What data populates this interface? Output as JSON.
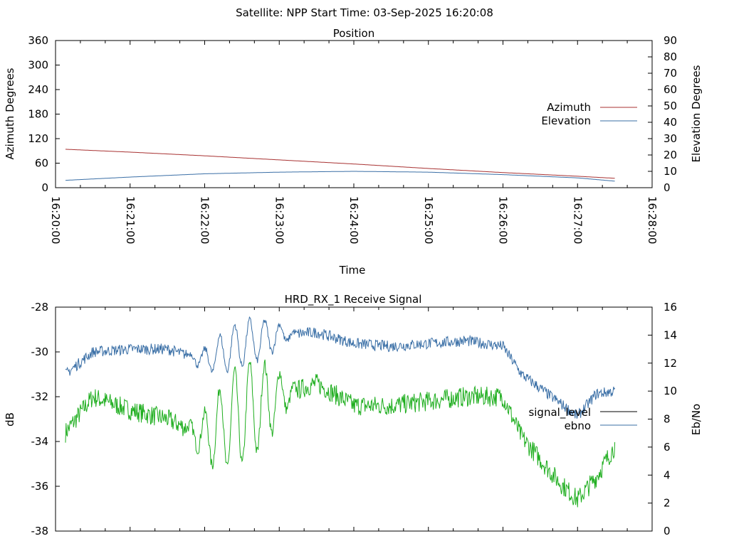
{
  "header": {
    "title": "Satellite: NPP    Start Time: 03-Sep-2025 16:20:08"
  },
  "colors": {
    "azimuth": "#a83232",
    "elevation": "#3a6fa6",
    "signal_level": "#000000",
    "signal_trace": "#1fae1f",
    "ebno": "#3a6fa6"
  },
  "chart_data": [
    {
      "id": "position",
      "type": "line",
      "title": "Position",
      "xlabel": "Time",
      "ylabel": "Azimuth Degrees",
      "y2label": "Elevation Degrees",
      "xlim": [
        "16:20:00",
        "16:28:00"
      ],
      "ylim": [
        0,
        360
      ],
      "y2lim": [
        0,
        90
      ],
      "xticks": [
        "16:20:00",
        "16:21:00",
        "16:22:00",
        "16:23:00",
        "16:24:00",
        "16:25:00",
        "16:26:00",
        "16:27:00",
        "16:28:00"
      ],
      "yticks": [
        "0",
        "60",
        "120",
        "180",
        "240",
        "300",
        "360"
      ],
      "y2ticks": [
        "0",
        "10",
        "20",
        "30",
        "40",
        "50",
        "60",
        "70",
        "80",
        "90"
      ],
      "legend": "right",
      "series": [
        {
          "name": "Azimuth",
          "axis": "y",
          "x": [
            "16:20:08",
            "16:21:00",
            "16:22:00",
            "16:23:00",
            "16:24:00",
            "16:25:00",
            "16:26:00",
            "16:27:00",
            "16:27:30"
          ],
          "values": [
            94,
            87,
            78,
            68,
            58,
            47,
            37,
            28,
            23
          ]
        },
        {
          "name": "Elevation",
          "axis": "y2",
          "x": [
            "16:20:08",
            "16:21:00",
            "16:22:00",
            "16:23:00",
            "16:24:00",
            "16:25:00",
            "16:26:00",
            "16:27:00",
            "16:27:30"
          ],
          "values": [
            4.5,
            6.5,
            8.5,
            9.5,
            10,
            9.5,
            8,
            6,
            4
          ]
        }
      ]
    },
    {
      "id": "receive",
      "type": "line",
      "title": "HRD_RX_1 Receive Signal",
      "ylabel": "dB",
      "y2label": "Eb/No",
      "xlim": [
        "16:20:00",
        "16:28:00"
      ],
      "ylim": [
        -38,
        -28
      ],
      "y2lim": [
        0,
        16
      ],
      "yticks": [
        "-38",
        "-36",
        "-34",
        "-32",
        "-30",
        "-28"
      ],
      "y2ticks": [
        "0",
        "2",
        "4",
        "6",
        "8",
        "10",
        "12",
        "14",
        "16"
      ],
      "legend": "right",
      "series": [
        {
          "name": "signal_level",
          "axis": "y",
          "x": [
            "16:20:08",
            "16:20:30",
            "16:21:00",
            "16:21:30",
            "16:22:00",
            "16:22:30",
            "16:23:00",
            "16:23:30",
            "16:24:00",
            "16:24:30",
            "16:25:00",
            "16:25:30",
            "16:26:00",
            "16:26:15",
            "16:26:30",
            "16:26:45",
            "16:27:00",
            "16:27:15",
            "16:27:30"
          ],
          "values": [
            -33.6,
            -32.0,
            -32.6,
            -33.0,
            -33.8,
            -32.8,
            -32.0,
            -31.4,
            -32.4,
            -32.4,
            -32.2,
            -32.0,
            -32.0,
            -33.8,
            -34.8,
            -35.8,
            -36.6,
            -35.6,
            -34.2
          ]
        },
        {
          "name": "ebno",
          "axis": "y2",
          "x": [
            "16:20:08",
            "16:20:30",
            "16:21:00",
            "16:21:30",
            "16:22:00",
            "16:22:30",
            "16:23:00",
            "16:23:30",
            "16:24:00",
            "16:24:30",
            "16:25:00",
            "16:25:30",
            "16:26:00",
            "16:26:15",
            "16:26:30",
            "16:26:45",
            "16:27:00",
            "16:27:15",
            "16:27:30"
          ],
          "values": [
            11.2,
            12.8,
            13.0,
            13.0,
            12.2,
            13.4,
            14.0,
            14.2,
            13.4,
            13.2,
            13.4,
            13.6,
            13.2,
            11.2,
            10.2,
            9.2,
            8.2,
            9.8,
            10.0
          ]
        }
      ]
    }
  ]
}
